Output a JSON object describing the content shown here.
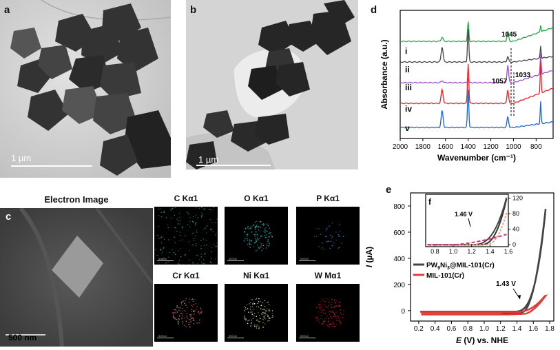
{
  "panel_a": {
    "letter": "a",
    "scale": "1 µm"
  },
  "panel_b": {
    "letter": "b",
    "scale": "1 µm"
  },
  "panel_c": {
    "letter": "c",
    "title": "Electron Image",
    "scale": "500 nm",
    "maps": [
      {
        "label": "C Kα1",
        "color": "#2fae6a"
      },
      {
        "label": "O Kα1",
        "color": "#3fd0d0"
      },
      {
        "label": "P Kα1",
        "color": "#3a8fe0"
      },
      {
        "label": "Cr Kα1",
        "color": "#e07a80"
      },
      {
        "label": "Ni Kα1",
        "color": "#f2f0a0"
      },
      {
        "label": "W Mα1",
        "color": "#e02020"
      }
    ],
    "map_scale": "500nm"
  },
  "chart_data": [
    {
      "type": "line",
      "panel": "d",
      "xlabel": "Wavenumber (cm⁻¹)",
      "ylabel": "Absorbance (a.u.)",
      "xlim": [
        2000,
        650
      ],
      "xticks": [
        2000,
        1800,
        1600,
        1400,
        1200,
        1000,
        800
      ],
      "series": [
        {
          "name": "i",
          "color": "#21a84a"
        },
        {
          "name": "ii",
          "color": "#444444"
        },
        {
          "name": "iii",
          "color": "#a24fd0"
        },
        {
          "name": "iv",
          "color": "#e52222"
        },
        {
          "name": "v",
          "color": "#1a66c8"
        }
      ],
      "annotations": [
        "1045",
        "1033",
        "1057"
      ]
    },
    {
      "type": "line",
      "panel": "e",
      "xlabel_main": "E",
      "xlabel_rest": " (V) vs. NHE",
      "ylabel_main": "I",
      "ylabel_rest": " (µA)",
      "xlim": [
        0.1,
        1.85
      ],
      "ylim": [
        -80,
        900
      ],
      "xticks": [
        0.2,
        0.4,
        0.6,
        0.8,
        1.0,
        1.2,
        1.4,
        1.6,
        1.8
      ],
      "yticks": [
        0,
        200,
        400,
        600,
        800
      ],
      "series": [
        {
          "name": "PW9Ni3@MIL-101(Cr)",
          "color": "#444444",
          "onset": 1.43
        },
        {
          "name": "MIL-101(Cr)",
          "color": "#e23a3a"
        }
      ],
      "legend": [
        "PW",
        "9",
        "Ni",
        "3",
        "@MIL-101(Cr)",
        "MIL-101(Cr)"
      ],
      "annotation": "1.43 V",
      "inset": {
        "letter": "f",
        "xticks": [
          0.8,
          1.0,
          1.2,
          1.4,
          1.6
        ],
        "yticks": [
          0,
          40,
          80,
          120
        ],
        "annotation": "1.46 V"
      }
    }
  ]
}
